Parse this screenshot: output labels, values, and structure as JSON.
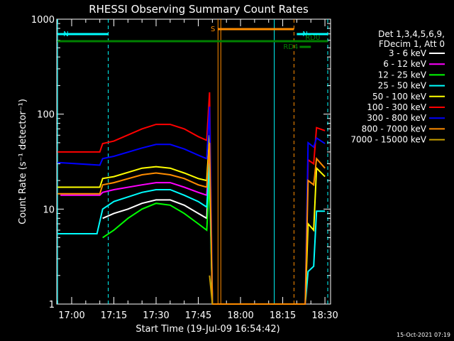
{
  "chart_data": {
    "type": "line",
    "title": "RHESSI Observing Summary Count Rates",
    "xlabel": "Start Time (19-Jul-09 16:54:42)",
    "ylabel": "Count Rate (s⁻¹ detector⁻¹)",
    "yscale": "log",
    "ylim": [
      1,
      1000
    ],
    "xlim": [
      "16:54:42",
      "18:32:00"
    ],
    "xticks": [
      "17:00",
      "17:15",
      "17:30",
      "17:45",
      "18:00",
      "18:15",
      "18:30"
    ],
    "yticks": [
      "1",
      "10",
      "100",
      "1000"
    ],
    "grid": false,
    "legend_position": "right",
    "legend_header": [
      "Det 1,3,4,5,6,9,",
      "FDecim 1, Att 0"
    ],
    "series": [
      {
        "name": "3 - 6 keV",
        "color": "#ffffff",
        "points": [
          [
            "17:11",
            8
          ],
          [
            "17:15",
            9
          ],
          [
            "17:20",
            10
          ],
          [
            "17:25",
            11.5
          ],
          [
            "17:30",
            12.5
          ],
          [
            "17:35",
            12.5
          ],
          [
            "17:40",
            11
          ],
          [
            "17:45",
            9
          ],
          [
            "17:48",
            8
          ],
          [
            "17:49",
            30
          ],
          [
            "17:50",
            1
          ]
        ]
      },
      {
        "name": "6 - 12 keV",
        "color": "#ff00ff",
        "points": [
          [
            "16:56",
            14
          ],
          [
            "17:10",
            14
          ],
          [
            "17:11",
            15
          ],
          [
            "17:15",
            16
          ],
          [
            "17:25",
            18
          ],
          [
            "17:30",
            19
          ],
          [
            "17:35",
            19
          ],
          [
            "17:40",
            17
          ],
          [
            "17:45",
            15
          ],
          [
            "17:48",
            14
          ],
          [
            "17:49",
            40
          ],
          [
            "17:50",
            1
          ]
        ]
      },
      {
        "name": "12 - 25 keV",
        "color": "#00ff00",
        "points": [
          [
            "17:11",
            5
          ],
          [
            "17:15",
            6
          ],
          [
            "17:20",
            8
          ],
          [
            "17:25",
            10
          ],
          [
            "17:30",
            11.5
          ],
          [
            "17:35",
            11
          ],
          [
            "17:40",
            9
          ],
          [
            "17:45",
            7
          ],
          [
            "17:48",
            6
          ],
          [
            "17:49",
            20
          ],
          [
            "17:50",
            1
          ]
        ]
      },
      {
        "name": "25 - 50 keV",
        "color": "#00ffff",
        "points": [
          [
            "16:55",
            5.5
          ],
          [
            "17:09",
            5.5
          ],
          [
            "17:11",
            10
          ],
          [
            "17:15",
            12
          ],
          [
            "17:25",
            15
          ],
          [
            "17:30",
            16
          ],
          [
            "17:35",
            16
          ],
          [
            "17:40",
            14
          ],
          [
            "17:45",
            12
          ],
          [
            "17:48",
            10.5
          ],
          [
            "17:49",
            30
          ],
          [
            "17:50",
            1
          ],
          [
            "18:23",
            1
          ],
          [
            "18:24",
            2.2
          ],
          [
            "18:26",
            2.5
          ],
          [
            "18:27",
            9.5
          ],
          [
            "18:30",
            9.5
          ]
        ]
      },
      {
        "name": "50 - 100 keV",
        "color": "#ffff00",
        "points": [
          [
            "16:55",
            17
          ],
          [
            "17:10",
            17
          ],
          [
            "17:11",
            21
          ],
          [
            "17:15",
            22
          ],
          [
            "17:25",
            27
          ],
          [
            "17:30",
            28
          ],
          [
            "17:35",
            27
          ],
          [
            "17:40",
            24
          ],
          [
            "17:45",
            21
          ],
          [
            "17:48",
            20
          ],
          [
            "17:49",
            60
          ],
          [
            "17:50",
            1
          ],
          [
            "18:23",
            1
          ],
          [
            "18:24",
            7
          ],
          [
            "18:26",
            6
          ],
          [
            "18:27",
            27
          ],
          [
            "18:30",
            22
          ]
        ]
      },
      {
        "name": "100 - 300 keV",
        "color": "#ff0000",
        "points": [
          [
            "16:55",
            40
          ],
          [
            "17:10",
            40
          ],
          [
            "17:11",
            49
          ],
          [
            "17:15",
            52
          ],
          [
            "17:25",
            70
          ],
          [
            "17:30",
            78
          ],
          [
            "17:35",
            78
          ],
          [
            "17:40",
            70
          ],
          [
            "17:45",
            58
          ],
          [
            "17:48",
            53
          ],
          [
            "17:49",
            170
          ],
          [
            "17:50",
            1
          ],
          [
            "18:23",
            1
          ],
          [
            "18:24",
            33
          ],
          [
            "18:26",
            30
          ],
          [
            "18:27",
            72
          ],
          [
            "18:30",
            67
          ]
        ]
      },
      {
        "name": "300 - 800 keV",
        "color": "#0000ff",
        "points": [
          [
            "16:55",
            31
          ],
          [
            "17:10",
            29
          ],
          [
            "17:11",
            34
          ],
          [
            "17:15",
            36
          ],
          [
            "17:25",
            44
          ],
          [
            "17:30",
            48
          ],
          [
            "17:35",
            48
          ],
          [
            "17:40",
            43
          ],
          [
            "17:45",
            37
          ],
          [
            "17:48",
            34
          ],
          [
            "17:49",
            120
          ],
          [
            "17:50",
            1
          ],
          [
            "18:23",
            1
          ],
          [
            "18:24",
            50
          ],
          [
            "18:26",
            45
          ],
          [
            "18:27",
            56
          ],
          [
            "18:30",
            49
          ]
        ]
      },
      {
        "name": "800 - 7000 keV",
        "color": "#ff8c00",
        "points": [
          [
            "16:55",
            14.5
          ],
          [
            "17:10",
            14.5
          ],
          [
            "17:11",
            18
          ],
          [
            "17:15",
            19
          ],
          [
            "17:25",
            23
          ],
          [
            "17:30",
            24
          ],
          [
            "17:35",
            23
          ],
          [
            "17:40",
            21
          ],
          [
            "17:45",
            18
          ],
          [
            "17:48",
            17
          ],
          [
            "17:49",
            50
          ],
          [
            "17:50",
            1
          ],
          [
            "18:23",
            1
          ],
          [
            "18:24",
            20
          ],
          [
            "18:26",
            18
          ],
          [
            "18:27",
            34
          ],
          [
            "18:30",
            27
          ]
        ]
      },
      {
        "name": "7000 - 15000 keV",
        "color": "#c8a000",
        "points": [
          [
            "17:49",
            2
          ],
          [
            "17:50",
            1
          ]
        ]
      }
    ],
    "flag_bars": [
      {
        "label": "N",
        "color": "#00ffff",
        "start": "16:55",
        "end": "17:13"
      },
      {
        "label": "N",
        "color": "#00ffff",
        "start": "18:20",
        "end": "18:31"
      },
      {
        "label": "",
        "color": "#008000",
        "start": "16:55",
        "end": "18:31"
      },
      {
        "label": "S",
        "color": "#ff8c00",
        "start": "17:52",
        "end": "18:19"
      },
      {
        "label": "RD0",
        "color": "#008000",
        "start": "18:21",
        "end": "18:24"
      },
      {
        "label": "RD4",
        "color": "#008000",
        "start": "18:21",
        "end": "18:25"
      }
    ],
    "vertical_markers": [
      {
        "time": "16:55",
        "color": "#00ffff",
        "style": "solid"
      },
      {
        "time": "17:13",
        "color": "#00ffff",
        "style": "dashed"
      },
      {
        "time": "17:52",
        "color": "#ff8c00",
        "style": "solid"
      },
      {
        "time": "17:53",
        "color": "#ff8c00",
        "style": "solid"
      },
      {
        "time": "18:12",
        "color": "#00ffff",
        "style": "solid"
      },
      {
        "time": "18:19",
        "color": "#ff8c00",
        "style": "dashed"
      },
      {
        "time": "18:31",
        "color": "#00ffff",
        "style": "dashed"
      }
    ],
    "footer_timestamp": "15-Oct-2021 07:19"
  }
}
